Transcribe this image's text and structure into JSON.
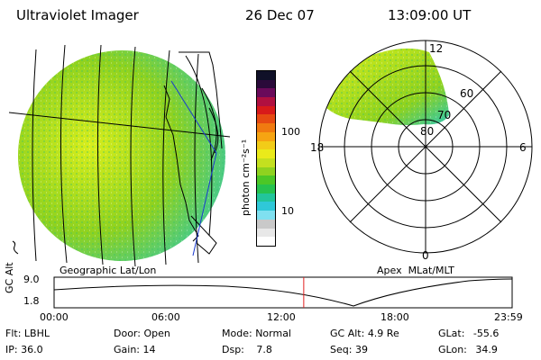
{
  "header": {
    "instrument": "Ultraviolet Imager",
    "date": "26 Dec 07",
    "time": "13:09:00 UT"
  },
  "colorbar": {
    "unit_label": "photon cm⁻²s⁻¹",
    "ticks": [
      "100",
      "10"
    ],
    "colors": [
      "#ffffff",
      "#e8e8e8",
      "#c9c9c9",
      "#7fe0f0",
      "#2fc8d8",
      "#22c59a",
      "#26c24e",
      "#4cc726",
      "#8fd21f",
      "#c4e01f",
      "#eaea1a",
      "#f2cc18",
      "#f6a412",
      "#f07a10",
      "#e64a12",
      "#d81a1a",
      "#b01040",
      "#6a0a5a",
      "#2a0a3a",
      "#101028"
    ]
  },
  "left_panel": {
    "caption": "Geographic Lat/Lon",
    "image_colors": {
      "bright": "#d8ee1c",
      "mid": "#8fd21f",
      "dim": "#2fc8b0",
      "speckle": "#36c36b"
    }
  },
  "right_panel": {
    "caption": "Apex  MLat/MLT",
    "lat_labels": [
      "80",
      "70",
      "60"
    ],
    "mlt_labels": {
      "top": "12",
      "bottom": "0",
      "left": "18",
      "right": "6"
    }
  },
  "altitude_plot": {
    "ylabel": "GC Alt",
    "ymax_label": "9.0",
    "ymin_label": "1.8",
    "time_ticks": [
      "00:00",
      "06:00",
      "12:00",
      "18:00",
      "23:59"
    ],
    "marker_time_fraction": 0.545,
    "marker_color": "#e02020"
  },
  "info": {
    "filter_label": "Flt:",
    "filter_value": "LBHL",
    "ip_label": "IP:",
    "ip_value": "36.0",
    "door_label": "Door:",
    "door_value": "Open",
    "gain_label": "Gain:",
    "gain_value": "14",
    "mode_label": "Mode:",
    "mode_value": "Normal",
    "dsp_label": "Dsp:",
    "dsp_value": "7.8",
    "gcalt_label": "GC Alt:",
    "gcalt_value": "4.9 Re",
    "seq_label": "Seq:",
    "seq_value": "39",
    "glat_label": "GLat:",
    "glat_value": "-55.6",
    "glon_label": "GLon:",
    "glon_value": "34.9"
  }
}
